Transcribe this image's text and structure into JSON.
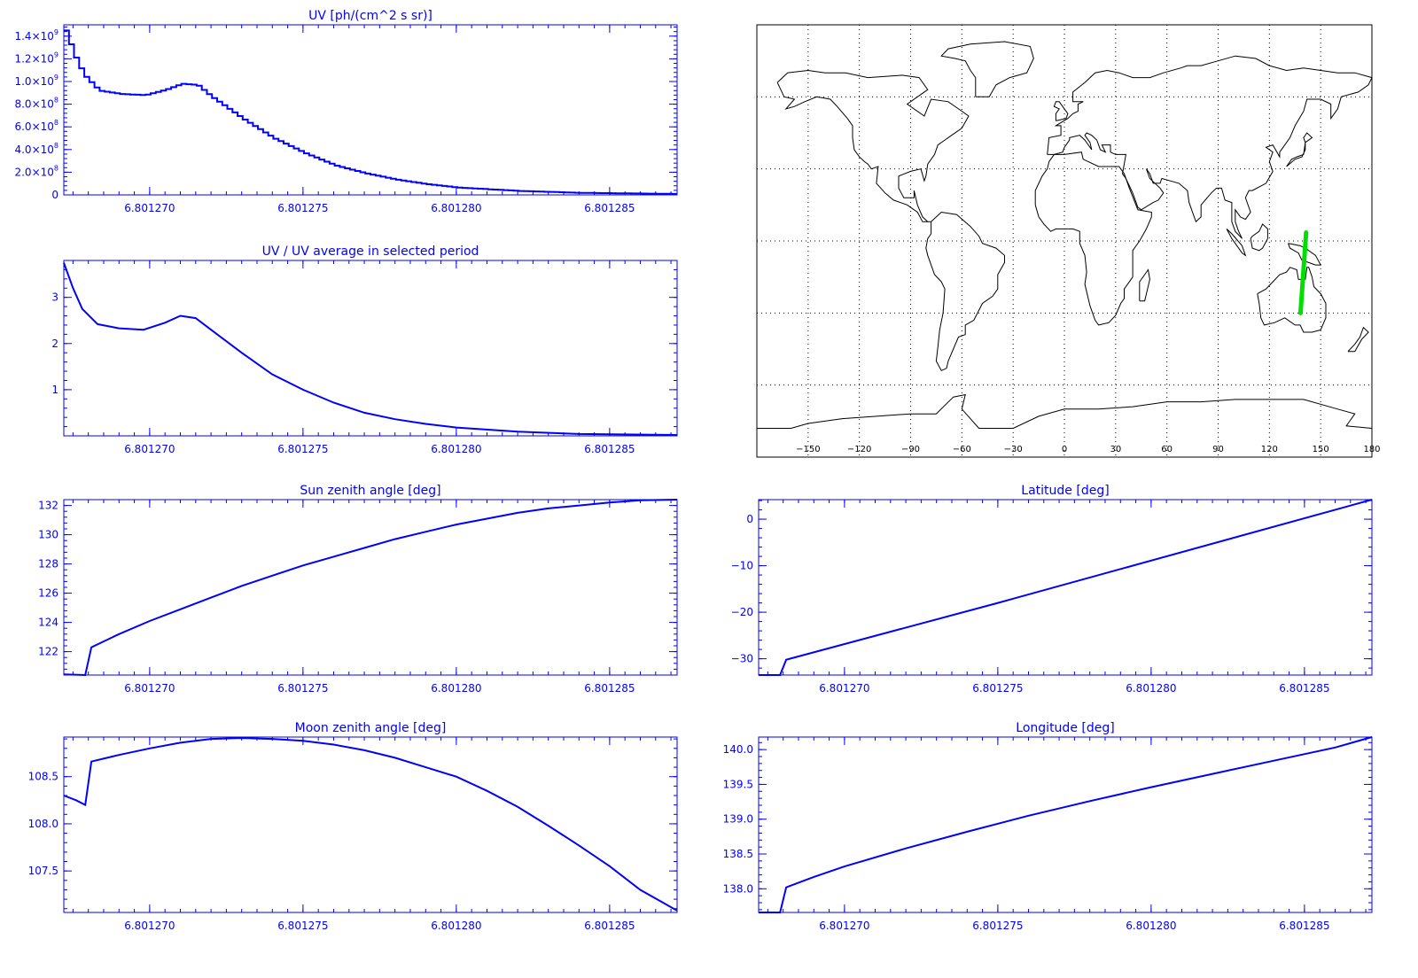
{
  "colors": {
    "axis": "#0000ff",
    "line": "#0000ff",
    "track": "#00e000",
    "map": "#000000",
    "grid": "#000000"
  },
  "chart_data": [
    {
      "id": "uv",
      "type": "line",
      "style": "step",
      "title": "UV [ph/(cm^2 s sr)]",
      "xlim": [
        6.8012672,
        6.8012872
      ],
      "ylim": [
        0,
        1500000000.0
      ],
      "xticks": [
        6.80127,
        6.801275,
        6.80128,
        6.801285
      ],
      "xtick_labels": [
        "6.801270",
        "6.801275",
        "6.801280",
        "6.801285"
      ],
      "yticks": [
        0,
        200000000.0,
        400000000.0,
        600000000.0,
        800000000.0,
        1000000000.0,
        1200000000.0,
        1400000000.0
      ],
      "ytick_labels": [
        {
          "m": "0",
          "e": ""
        },
        {
          "m": "2.0×10",
          "e": "8"
        },
        {
          "m": "4.0×10",
          "e": "8"
        },
        {
          "m": "6.0×10",
          "e": "8"
        },
        {
          "m": "8.0×10",
          "e": "8"
        },
        {
          "m": "1.0×10",
          "e": "9"
        },
        {
          "m": "1.2×10",
          "e": "9"
        },
        {
          "m": "1.4×10",
          "e": "9"
        }
      ],
      "x": [
        6.8012672,
        6.8012675,
        6.8012678,
        6.8012683,
        6.801269,
        6.8012698,
        6.8012705,
        6.801271,
        6.8012715,
        6.801272,
        6.801273,
        6.801274,
        6.801275,
        6.801276,
        6.801277,
        6.801278,
        6.801279,
        6.80128,
        6.801282,
        6.801284,
        6.8012872
      ],
      "y": [
        1450000000.0,
        1230000000.0,
        1060000000.0,
        920000000.0,
        890000000.0,
        880000000.0,
        930000000.0,
        980000000.0,
        970000000.0,
        860000000.0,
        670000000.0,
        500000000.0,
        370000000.0,
        260000000.0,
        190000000.0,
        135000000.0,
        95000000.0,
        65000000.0,
        35000000.0,
        18000000.0,
        8000000.0
      ]
    },
    {
      "id": "ratio",
      "type": "line",
      "title": "UV / UV average in selected period",
      "xlim": [
        6.8012672,
        6.8012872
      ],
      "ylim": [
        0,
        3.8
      ],
      "xticks": [
        6.80127,
        6.801275,
        6.80128,
        6.801285
      ],
      "xtick_labels": [
        "6.801270",
        "6.801275",
        "6.801280",
        "6.801285"
      ],
      "yticks": [
        1,
        2,
        3
      ],
      "ytick_labels": [
        {
          "m": "1",
          "e": ""
        },
        {
          "m": "2",
          "e": ""
        },
        {
          "m": "3",
          "e": ""
        }
      ],
      "x": [
        6.8012672,
        6.8012675,
        6.8012678,
        6.8012683,
        6.801269,
        6.8012698,
        6.8012705,
        6.801271,
        6.8012715,
        6.801272,
        6.801273,
        6.801274,
        6.801275,
        6.801276,
        6.801277,
        6.801278,
        6.801279,
        6.80128,
        6.801282,
        6.801284,
        6.8012872
      ],
      "y": [
        3.75,
        3.2,
        2.75,
        2.42,
        2.33,
        2.3,
        2.45,
        2.6,
        2.55,
        2.3,
        1.8,
        1.33,
        1.0,
        0.72,
        0.5,
        0.36,
        0.26,
        0.18,
        0.09,
        0.04,
        0.02
      ]
    },
    {
      "id": "sza",
      "type": "line",
      "title": "Sun zenith angle [deg]",
      "xlim": [
        6.8012672,
        6.8012872
      ],
      "ylim": [
        120.4,
        132.4
      ],
      "xticks": [
        6.80127,
        6.801275,
        6.80128,
        6.801285
      ],
      "xtick_labels": [
        "6.801270",
        "6.801275",
        "6.801280",
        "6.801285"
      ],
      "yticks": [
        122,
        124,
        126,
        128,
        130,
        132
      ],
      "ytick_labels": [
        {
          "m": "122",
          "e": ""
        },
        {
          "m": "124",
          "e": ""
        },
        {
          "m": "126",
          "e": ""
        },
        {
          "m": "128",
          "e": ""
        },
        {
          "m": "130",
          "e": ""
        },
        {
          "m": "132",
          "e": ""
        }
      ],
      "x": [
        6.8012672,
        6.8012679,
        6.8012681,
        6.801269,
        6.80127,
        6.801271,
        6.801272,
        6.801273,
        6.801274,
        6.801275,
        6.801276,
        6.801277,
        6.801278,
        6.801279,
        6.80128,
        6.801281,
        6.801282,
        6.801283,
        6.801284,
        6.801285,
        6.801286,
        6.8012872
      ],
      "y": [
        120.45,
        120.4,
        122.3,
        123.2,
        124.1,
        124.9,
        125.7,
        126.5,
        127.2,
        127.9,
        128.5,
        129.1,
        129.7,
        130.2,
        130.7,
        131.1,
        131.5,
        131.8,
        132.0,
        132.2,
        132.35,
        132.4
      ]
    },
    {
      "id": "mza",
      "type": "line",
      "title": "Moon zenith angle [deg]",
      "xlim": [
        6.8012672,
        6.8012872
      ],
      "ylim": [
        107.06,
        108.92
      ],
      "xticks": [
        6.80127,
        6.801275,
        6.80128,
        6.801285
      ],
      "xtick_labels": [
        "6.801270",
        "6.801275",
        "6.801280",
        "6.801285"
      ],
      "yticks": [
        107.5,
        108.0,
        108.5
      ],
      "ytick_labels": [
        {
          "m": "107.5",
          "e": ""
        },
        {
          "m": "108.0",
          "e": ""
        },
        {
          "m": "108.5",
          "e": ""
        }
      ],
      "x": [
        6.8012672,
        6.8012676,
        6.8012679,
        6.8012681,
        6.801269,
        6.80127,
        6.801271,
        6.801272,
        6.801273,
        6.801274,
        6.801275,
        6.801276,
        6.801277,
        6.801278,
        6.801279,
        6.80128,
        6.801281,
        6.801282,
        6.801283,
        6.801284,
        6.801285,
        6.801286,
        6.8012872
      ],
      "y": [
        108.3,
        108.25,
        108.2,
        108.66,
        108.73,
        108.8,
        108.86,
        108.9,
        108.91,
        108.9,
        108.88,
        108.84,
        108.78,
        108.7,
        108.6,
        108.5,
        108.35,
        108.18,
        107.98,
        107.77,
        107.55,
        107.3,
        107.08
      ]
    },
    {
      "id": "lat",
      "type": "line",
      "title": "Latitude [deg]",
      "xlim": [
        6.8012672,
        6.8012872
      ],
      "ylim": [
        -33.5,
        4.2
      ],
      "xticks": [
        6.80127,
        6.801275,
        6.80128,
        6.801285
      ],
      "xtick_labels": [
        "6.801270",
        "6.801275",
        "6.801280",
        "6.801285"
      ],
      "yticks": [
        -30,
        -20,
        -10,
        0
      ],
      "ytick_labels": [
        {
          "m": "−30",
          "e": ""
        },
        {
          "m": "−20",
          "e": ""
        },
        {
          "m": "−10",
          "e": ""
        },
        {
          "m": "0",
          "e": ""
        }
      ],
      "x": [
        6.8012672,
        6.8012679,
        6.8012681,
        6.801275,
        6.8012872
      ],
      "y": [
        -33.5,
        -33.5,
        -30.2,
        -18.0,
        4.2
      ]
    },
    {
      "id": "lon",
      "type": "line",
      "title": "Longitude [deg]",
      "xlim": [
        6.8012672,
        6.8012872
      ],
      "ylim": [
        137.66,
        140.18
      ],
      "xticks": [
        6.80127,
        6.801275,
        6.80128,
        6.801285
      ],
      "xtick_labels": [
        "6.801270",
        "6.801275",
        "6.801280",
        "6.801285"
      ],
      "yticks": [
        138.0,
        138.5,
        139.0,
        139.5,
        140.0
      ],
      "ytick_labels": [
        {
          "m": "138.0",
          "e": ""
        },
        {
          "m": "138.5",
          "e": ""
        },
        {
          "m": "139.0",
          "e": ""
        },
        {
          "m": "139.5",
          "e": ""
        },
        {
          "m": "140.0",
          "e": ""
        }
      ],
      "x": [
        6.8012672,
        6.8012679,
        6.8012681,
        6.801269,
        6.80127,
        6.801272,
        6.801274,
        6.801276,
        6.801278,
        6.80128,
        6.801282,
        6.801284,
        6.801286,
        6.8012872
      ],
      "y": [
        137.66,
        137.66,
        138.02,
        138.17,
        138.32,
        138.58,
        138.82,
        139.05,
        139.26,
        139.46,
        139.65,
        139.84,
        140.03,
        140.18
      ]
    }
  ],
  "map": {
    "xlim": [
      -180,
      180
    ],
    "ylim": [
      -90,
      90
    ],
    "lon_tick_labels": [
      "−150",
      "−120",
      "−90",
      "−60",
      "−30",
      "0",
      "30",
      "60",
      "90",
      "120",
      "150",
      "180"
    ],
    "lon_ticks": [
      -150,
      -120,
      -90,
      -60,
      -30,
      0,
      30,
      60,
      90,
      120,
      150,
      180
    ],
    "lat_grid": [
      -60,
      -30,
      0,
      30,
      60
    ],
    "track": {
      "lon": [
        141.5,
        138.2
      ],
      "lat": [
        3.5,
        -30.0
      ]
    }
  }
}
